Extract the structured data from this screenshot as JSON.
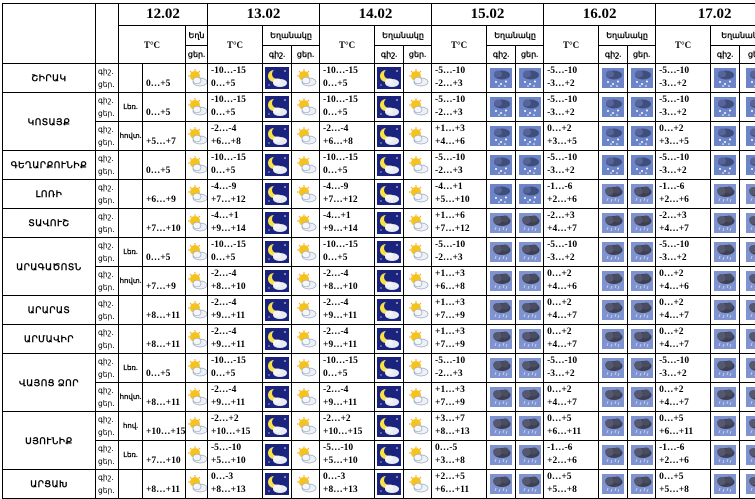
{
  "dates": [
    "12.02",
    "13.02",
    "14.02",
    "15.02",
    "16.02",
    "17.02"
  ],
  "header": {
    "temp_label": "T°C",
    "cloud_label_short": "Եղն",
    "cloud_label": "Եղանակը",
    "day_label": "ցեր.",
    "night_label": "գիշ.",
    "day_label_first": "ցեր.",
    "first_col_night": "գիշ."
  },
  "period_labels": {
    "night": "գիշ.",
    "day": "ցեր."
  },
  "regions": [
    {
      "name": "ՇԻՐԱԿ",
      "rows": [
        {
          "sub": "",
          "t12": "0…+5",
          "i12": "sun-cloud",
          "days": [
            [
              "-10…-15",
              "0…+5",
              "moon",
              "sun-cloud"
            ],
            [
              "-10…-15",
              "0…+5",
              "moon",
              "sun-cloud"
            ],
            [
              "-5…-10",
              "-2…+3",
              "snow",
              "snow"
            ],
            [
              "-5…-10",
              "-3…+2",
              "snow",
              "snow"
            ],
            [
              "-5…-10",
              "-3…+2",
              "snow",
              "snow"
            ]
          ]
        }
      ]
    },
    {
      "name": "ԿՈՏԱՅՔ",
      "rows": [
        {
          "sub": "Լեռ.",
          "t12": "0…+5",
          "i12": "sun-cloud",
          "days": [
            [
              "-10…-15",
              "0…+5",
              "moon",
              "sun-cloud"
            ],
            [
              "-10…-15",
              "0…+5",
              "moon",
              "sun-cloud"
            ],
            [
              "-5…-10",
              "-2…+3",
              "snow",
              "snow"
            ],
            [
              "-5…-10",
              "-3…+2",
              "snow",
              "snow"
            ],
            [
              "-5…-10",
              "-3…+2",
              "snow",
              "snow"
            ]
          ]
        },
        {
          "sub": "հովտ.",
          "t12": "+5…+7",
          "i12": "sun-cloud",
          "days": [
            [
              "-2…-4",
              "+6…+8",
              "moon",
              "sun-cloud"
            ],
            [
              "-2…-4",
              "+6…+8",
              "moon",
              "sun-cloud"
            ],
            [
              "+1…+3",
              "+4…+6",
              "snow",
              "snow"
            ],
            [
              "0…+2",
              "+3…+5",
              "snow",
              "snow"
            ],
            [
              "0…+2",
              "+3…+5",
              "snow",
              "snow"
            ]
          ]
        }
      ]
    },
    {
      "name": "ԳԵՂԱՐՔՈՒՆԻՔ",
      "rows": [
        {
          "sub": "",
          "t12": "0…+5",
          "i12": "sun-cloud",
          "days": [
            [
              "-10…-15",
              "0…+5",
              "moon",
              "sun-cloud"
            ],
            [
              "-10…-15",
              "0…+5",
              "moon",
              "sun-cloud"
            ],
            [
              "-5…-10",
              "-2…+3",
              "snow",
              "snow"
            ],
            [
              "-5…-10",
              "-3…+2",
              "snow",
              "snow"
            ],
            [
              "-5…-10",
              "-3…+2",
              "snow",
              "snow"
            ]
          ]
        }
      ]
    },
    {
      "name": "ԼՈՌԻ",
      "rows": [
        {
          "sub": "",
          "t12": "+6…+9",
          "i12": "sun-cloud",
          "days": [
            [
              "-4…-9",
              "+7…+12",
              "moon",
              "sun-cloud"
            ],
            [
              "-4…-9",
              "+7…+12",
              "moon",
              "sun-cloud"
            ],
            [
              "-4…+1",
              "+5…+10",
              "snow",
              "snow"
            ],
            [
              "-1…-6",
              "+2…+6",
              "rain",
              "rain"
            ],
            [
              "-1…-6",
              "+2…+6",
              "rain",
              "rain"
            ]
          ]
        }
      ]
    },
    {
      "name": "ՏԱՎՈՒՇ",
      "rows": [
        {
          "sub": "",
          "t12": "+7…+10",
          "i12": "sun-cloud",
          "days": [
            [
              "-4…+1",
              "+9…+14",
              "moon",
              "sun-cloud"
            ],
            [
              "-4…+1",
              "+9…+14",
              "moon",
              "sun-cloud"
            ],
            [
              "+1…+6",
              "+7…+12",
              "rain",
              "rain"
            ],
            [
              "-2…+3",
              "+4…+7",
              "rain",
              "rain"
            ],
            [
              "-2…+3",
              "+4…+7",
              "rain",
              "rain"
            ]
          ]
        }
      ]
    },
    {
      "name": "ԱՐԱԳԱԾՈՏՆ",
      "rows": [
        {
          "sub": "Լեռ.",
          "t12": "0…+5",
          "i12": "sun-cloud",
          "days": [
            [
              "-10…-15",
              "0…+5",
              "moon",
              "sun-cloud"
            ],
            [
              "-10…-15",
              "0…+5",
              "moon",
              "sun-cloud"
            ],
            [
              "-5…-10",
              "-2…+3",
              "rain",
              "rain"
            ],
            [
              "-5…-10",
              "-3…+2",
              "rain",
              "rain"
            ],
            [
              "-5…-10",
              "-3…+2",
              "rain",
              "rain"
            ]
          ]
        },
        {
          "sub": "հովտ.",
          "t12": "+7…+9",
          "i12": "sun-cloud",
          "days": [
            [
              "-2…-4",
              "+8…+10",
              "moon",
              "sun-cloud"
            ],
            [
              "-2…-4",
              "+8…+10",
              "moon",
              "sun-cloud"
            ],
            [
              "+1…+3",
              "+6…+8",
              "rain",
              "rain"
            ],
            [
              "0…+2",
              "+4…+6",
              "rain",
              "rain"
            ],
            [
              "0…+2",
              "+4…+6",
              "rain",
              "rain"
            ]
          ]
        }
      ]
    },
    {
      "name": "ԱՐԱՐԱՏ",
      "rows": [
        {
          "sub": "",
          "t12": "+8…+11",
          "i12": "sun-cloud",
          "days": [
            [
              "-2…-4",
              "+9…+11",
              "moon",
              "sun-cloud"
            ],
            [
              "-2…-4",
              "+9…+11",
              "moon",
              "sun-cloud"
            ],
            [
              "+1…+3",
              "+7…+9",
              "rain",
              "rain"
            ],
            [
              "0…+2",
              "+4…+7",
              "rain",
              "rain"
            ],
            [
              "0…+2",
              "+4…+7",
              "rain",
              "rain"
            ]
          ]
        }
      ]
    },
    {
      "name": "ԱՐՄԱՎԻՐ",
      "rows": [
        {
          "sub": "",
          "t12": "+8…+11",
          "i12": "sun-cloud",
          "days": [
            [
              "-2…-4",
              "+9…+11",
              "moon",
              "sun-cloud"
            ],
            [
              "-2…-4",
              "+9…+11",
              "moon",
              "sun-cloud"
            ],
            [
              "+1…+3",
              "+7…+9",
              "rain",
              "rain"
            ],
            [
              "0…+2",
              "+4…+7",
              "rain",
              "rain"
            ],
            [
              "0…+2",
              "+4…+7",
              "rain",
              "rain"
            ]
          ]
        }
      ]
    },
    {
      "name": "ՎԱՅՈՑ ՁՈՐ",
      "rows": [
        {
          "sub": "Լեռ.",
          "t12": "0…+5",
          "i12": "sun-cloud",
          "days": [
            [
              "-10…-15",
              "0…+5",
              "moon",
              "sun-cloud"
            ],
            [
              "-10…-15",
              "0…+5",
              "moon",
              "sun-cloud"
            ],
            [
              "-5…-10",
              "-2…+3",
              "rain",
              "rain"
            ],
            [
              "-5…-10",
              "-3…+2",
              "rain",
              "rain"
            ],
            [
              "-5…-10",
              "-3…+2",
              "rain",
              "rain"
            ]
          ]
        },
        {
          "sub": "հովտ.",
          "t12": "+8…+11",
          "i12": "sun-cloud",
          "days": [
            [
              "-2…-4",
              "+9…+11",
              "moon",
              "sun-cloud"
            ],
            [
              "-2…-4",
              "+9…+11",
              "moon",
              "sun-cloud"
            ],
            [
              "+1…+3",
              "+7…+9",
              "rain",
              "rain"
            ],
            [
              "0…+2",
              "+4…+7",
              "rain",
              "rain"
            ],
            [
              "0…+2",
              "+4…+7",
              "rain",
              "rain"
            ]
          ]
        }
      ]
    },
    {
      "name": "ՍՅՈՒՆԻՔ",
      "rows": [
        {
          "sub": "հով.",
          "t12": "+10…+15",
          "i12": "sun-cloud",
          "days": [
            [
              "-2…+2",
              "+10…+15",
              "moon",
              "sun-cloud"
            ],
            [
              "-2…+2",
              "+10…+15",
              "moon",
              "sun-cloud"
            ],
            [
              "+3…+7",
              "+8…+13",
              "rain",
              "rain"
            ],
            [
              "0…+5",
              "+6…+11",
              "rain",
              "rain"
            ],
            [
              "0…+5",
              "+6…+11",
              "rain",
              "rain"
            ]
          ]
        },
        {
          "sub": "Լեռ.",
          "t12": "+7…+10",
          "i12": "sun-cloud",
          "days": [
            [
              "-5…-10",
              "+5…+10",
              "moon",
              "sun-cloud"
            ],
            [
              "-5…-10",
              "+5…+10",
              "moon",
              "sun-cloud"
            ],
            [
              "0…-5",
              "+3…+8",
              "rain",
              "rain"
            ],
            [
              "-1…-6",
              "+2…+6",
              "rain",
              "rain"
            ],
            [
              "-1…-6",
              "+2…+6",
              "rain",
              "rain"
            ]
          ]
        }
      ]
    },
    {
      "name": "ԱՐՑԱԽ",
      "rows": [
        {
          "sub": "",
          "t12": "+8…+11",
          "i12": "sun-cloud",
          "days": [
            [
              "0…-3",
              "+8…+13",
              "moon",
              "sun-cloud"
            ],
            [
              "0…-3",
              "+8…+13",
              "moon",
              "sun-cloud"
            ],
            [
              "+2…+5",
              "+6…+11",
              "rain",
              "rain"
            ],
            [
              "0…+5",
              "+5…+8",
              "rain",
              "rain"
            ],
            [
              "0…+5",
              "+5…+8",
              "rain",
              "rain"
            ]
          ]
        }
      ]
    }
  ]
}
